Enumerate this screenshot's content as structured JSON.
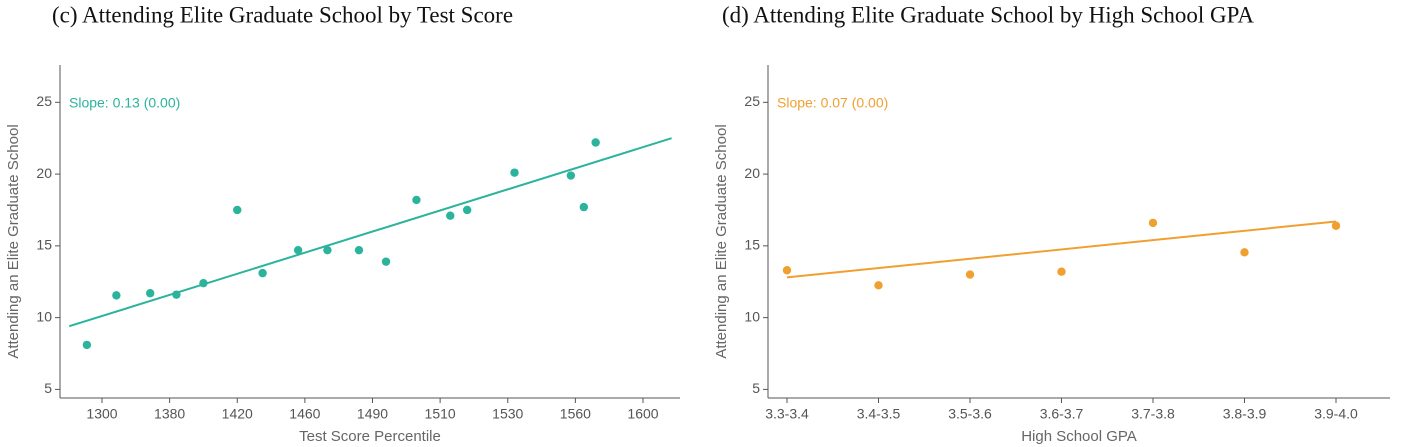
{
  "chart_data": [
    {
      "type": "scatter",
      "title": "(c) Attending Elite Graduate School by Test Score",
      "x_label": "Test Score Percentile",
      "y_label": "Attending an Elite Graduate School",
      "annotation": "Slope: 0.13 (0.00)",
      "color": "#2bb39c",
      "x": [
        1282,
        1317,
        1357,
        1384,
        1400,
        1420,
        1435,
        1456,
        1470,
        1484,
        1494,
        1503,
        1513,
        1518,
        1533,
        1558,
        1565,
        1572
      ],
      "values": [
        8.1,
        11.55,
        11.7,
        11.6,
        12.4,
        17.5,
        13.1,
        14.7,
        14.7,
        14.7,
        13.9,
        18.2,
        17.1,
        17.5,
        20.1,
        19.9,
        17.7,
        22.2
      ],
      "fit": {
        "x": [
          1261,
          1617
        ],
        "y": [
          9.4,
          22.5
        ]
      },
      "xlim": [
        1250,
        1622
      ],
      "xticks": [
        1300,
        1380,
        1420,
        1460,
        1490,
        1510,
        1530,
        1560,
        1600
      ],
      "ylim": [
        4.4,
        27.6
      ],
      "yticks": [
        5,
        10,
        15,
        20,
        25
      ]
    },
    {
      "type": "scatter",
      "title": "(d) Attending Elite Graduate School by High School GPA",
      "x_label": "High School GPA",
      "y_label": "Attending an Elite Graduate School",
      "annotation": "Slope: 0.07 (0.00)",
      "color": "#f0a030",
      "categories": [
        "3.3-3.4",
        "3.4-3.5",
        "3.5-3.6",
        "3.6-3.7",
        "3.7-3.8",
        "3.8-3.9",
        "3.9-4.0"
      ],
      "values": [
        13.3,
        12.25,
        13.0,
        13.2,
        16.6,
        14.55,
        16.4
      ],
      "fit": {
        "x": [
          "3.3-3.4",
          "3.9-4.0"
        ],
        "y": [
          12.8,
          16.7
        ]
      },
      "ylim": [
        4.4,
        27.6
      ],
      "yticks": [
        5,
        10,
        15,
        20,
        25
      ]
    }
  ]
}
